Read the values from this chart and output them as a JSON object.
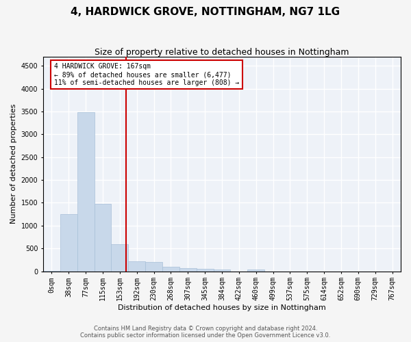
{
  "title": "4, HARDWICK GROVE, NOTTINGHAM, NG7 1LG",
  "subtitle": "Size of property relative to detached houses in Nottingham",
  "xlabel": "Distribution of detached houses by size in Nottingham",
  "ylabel": "Number of detached properties",
  "bar_color": "#c8d8ea",
  "bar_edge_color": "#a8c0d8",
  "categories": [
    "0sqm",
    "38sqm",
    "77sqm",
    "115sqm",
    "153sqm",
    "192sqm",
    "230sqm",
    "268sqm",
    "307sqm",
    "345sqm",
    "384sqm",
    "422sqm",
    "460sqm",
    "499sqm",
    "537sqm",
    "575sqm",
    "614sqm",
    "652sqm",
    "690sqm",
    "729sqm",
    "767sqm"
  ],
  "values": [
    10,
    1250,
    3490,
    1470,
    600,
    220,
    200,
    100,
    70,
    50,
    40,
    0,
    40,
    0,
    0,
    0,
    0,
    0,
    0,
    0,
    0
  ],
  "property_line_color": "#cc0000",
  "annotation_line1": "4 HARDWICK GROVE: 167sqm",
  "annotation_line2": "← 89% of detached houses are smaller (6,477)",
  "annotation_line3": "11% of semi-detached houses are larger (808) →",
  "annotation_box_color": "#cc0000",
  "ylim": [
    0,
    4700
  ],
  "yticks": [
    0,
    500,
    1000,
    1500,
    2000,
    2500,
    3000,
    3500,
    4000,
    4500
  ],
  "footer_line1": "Contains HM Land Registry data © Crown copyright and database right 2024.",
  "footer_line2": "Contains public sector information licensed under the Open Government Licence v3.0.",
  "background_color": "#eef2f8",
  "grid_color": "#ffffff",
  "title_fontsize": 11,
  "subtitle_fontsize": 9,
  "axis_label_fontsize": 8,
  "tick_fontsize": 7,
  "annotation_fontsize": 7,
  "footer_fontsize": 6
}
